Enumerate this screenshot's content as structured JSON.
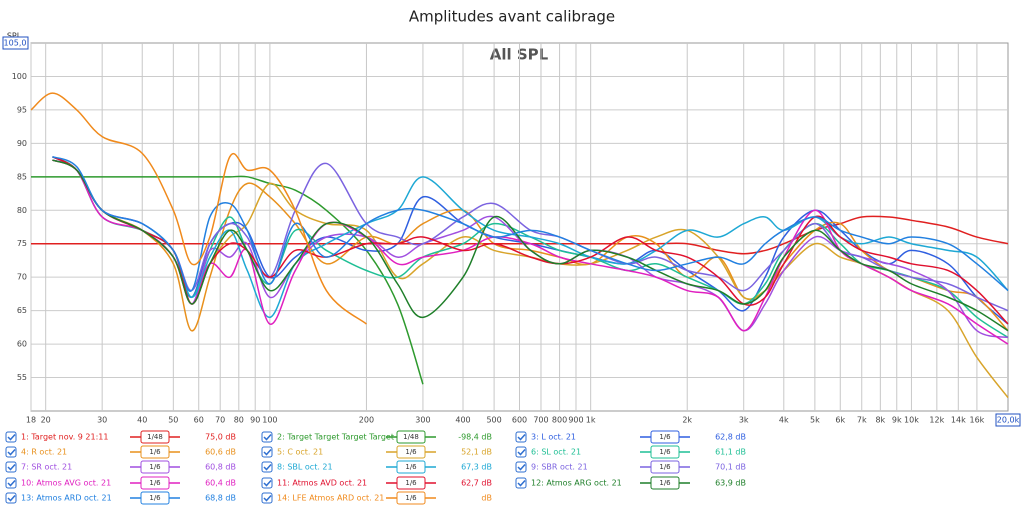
{
  "chart_data": {
    "type": "line",
    "title": "Amplitudes avant calibrage",
    "subtitle": "All SPL",
    "y_label": "SPL",
    "x_log": true,
    "grid": true,
    "xlim": [
      18,
      20000
    ],
    "ylim": [
      50,
      105
    ],
    "xticks": [
      18,
      20,
      30,
      40,
      50,
      60,
      70,
      80,
      90,
      100,
      200,
      300,
      400,
      500,
      600,
      700,
      800,
      900,
      {
        "value": 1000,
        "label": "1k"
      },
      {
        "value": 2000,
        "label": "2k"
      },
      {
        "value": 3000,
        "label": "3k"
      },
      {
        "value": 4000,
        "label": "4k"
      },
      {
        "value": 5000,
        "label": "5k"
      },
      {
        "value": 6000,
        "label": "6k"
      },
      {
        "value": 7000,
        "label": "7k"
      },
      {
        "value": 8000,
        "label": "8k"
      },
      {
        "value": 9000,
        "label": "9k"
      },
      {
        "value": 10000,
        "label": "10k"
      },
      {
        "value": 12000,
        "label": "12k"
      },
      {
        "value": 14000,
        "label": "14k"
      },
      {
        "value": 16000,
        "label": "16k"
      },
      {
        "value": 20000,
        "label": "20,0k"
      }
    ],
    "yticks": [
      55,
      60,
      65,
      70,
      75,
      80,
      85,
      90,
      95,
      100,
      {
        "value": 105,
        "label": "105,0"
      }
    ],
    "x": [
      18,
      21,
      25,
      30,
      40,
      50,
      57,
      65,
      75,
      85,
      100,
      120,
      150,
      200,
      250,
      300,
      400,
      500,
      650,
      800,
      1000,
      1300,
      1600,
      2000,
      2500,
      3000,
      3500,
      4000,
      5000,
      6000,
      7000,
      8500,
      10000,
      13000,
      16000,
      20000
    ],
    "series": [
      {
        "name": "1: Target nov. 9 21:11",
        "color": "#e02020",
        "smoothing": "1/48",
        "level": "75,0 dB",
        "values": [
          75,
          75,
          75,
          75,
          75,
          75,
          75,
          75,
          75,
          75,
          75,
          75,
          75,
          75,
          75,
          75,
          75,
          75,
          75,
          75,
          75,
          75,
          75,
          75,
          74,
          73.5,
          74,
          75,
          77,
          78,
          79,
          79,
          78.5,
          77.5,
          76,
          75
        ]
      },
      {
        "name": "2: Target Target Target Target 1",
        "color": "#2e9a2e",
        "smoothing": "1/48",
        "level": "-98,4 dB",
        "values": [
          85,
          85,
          85,
          85,
          85,
          85,
          85,
          85,
          85,
          85,
          84,
          83,
          80,
          74,
          66,
          54,
          null,
          null,
          null,
          null,
          null,
          null,
          null,
          null,
          null,
          null,
          null,
          null,
          null,
          null,
          null,
          null,
          null,
          null,
          null,
          null
        ]
      },
      {
        "name": "3: L oct. 21",
        "color": "#2f5fe0",
        "smoothing": "1/6",
        "level": "62,8 dB",
        "values": [
          null,
          88,
          86,
          80,
          77,
          73,
          67,
          75,
          78,
          77,
          70,
          73,
          76,
          74,
          75,
          82,
          78,
          76,
          75,
          74,
          73,
          72,
          74,
          71,
          68,
          65,
          70,
          76,
          80,
          77,
          74,
          72,
          74,
          72,
          67,
          63
        ]
      },
      {
        "name": "4: R oct. 21",
        "color": "#e8901c",
        "smoothing": "1/6",
        "level": "60,6 dB",
        "values": [
          null,
          87.5,
          86,
          80,
          77,
          72,
          62,
          70,
          80,
          84,
          82,
          78,
          72,
          76,
          75,
          78,
          80,
          75,
          74,
          73,
          72,
          76,
          75,
          70,
          73,
          67,
          68,
          72,
          77,
          78,
          74,
          71,
          70,
          68,
          67,
          62
        ]
      },
      {
        "name": "5: C oct. 21",
        "color": "#d8a42a",
        "smoothing": "1/6",
        "level": "52,1 dB",
        "values": [
          null,
          87.5,
          86,
          80,
          77,
          73,
          66,
          72,
          76,
          78,
          84,
          80,
          78,
          77,
          70,
          72,
          76,
          74,
          73,
          72,
          72,
          74,
          76,
          77,
          73,
          67,
          68,
          71,
          75,
          73,
          72,
          70,
          68,
          65,
          58,
          52
        ]
      },
      {
        "name": "6: SL oct. 21",
        "color": "#1fbf95",
        "smoothing": "1/6",
        "level": "61,1 dB",
        "values": [
          null,
          88,
          86,
          79,
          77,
          74,
          67,
          74,
          79,
          74,
          69,
          77,
          74,
          71,
          70,
          73,
          75,
          78,
          76,
          74,
          73,
          71,
          72,
          70,
          68,
          66,
          69,
          74,
          78,
          75,
          72,
          71,
          70,
          68,
          64,
          61
        ]
      },
      {
        "name": "7: SR oct. 21",
        "color": "#a04fe0",
        "smoothing": "1/6",
        "level": "60,8 dB",
        "values": [
          null,
          87.5,
          86,
          80,
          77,
          74,
          66,
          74,
          73,
          75,
          67,
          72,
          76,
          76,
          73,
          75,
          77,
          79,
          74,
          72,
          74,
          73,
          70,
          69,
          67,
          62,
          66,
          71,
          76,
          74,
          73,
          72,
          71,
          68,
          62,
          61
        ]
      },
      {
        "name": "8: SBL oct. 21",
        "color": "#1ea8d4",
        "smoothing": "1/6",
        "level": "67,3 dB",
        "values": [
          null,
          88,
          86,
          80,
          78,
          74,
          67,
          73,
          77,
          71,
          64,
          72,
          75,
          78,
          80,
          85,
          80,
          77,
          76,
          75,
          73,
          72,
          74,
          77,
          76,
          78,
          79,
          77,
          79,
          76,
          75,
          76,
          75,
          74,
          73,
          68
        ]
      },
      {
        "name": "9: SBR oct. 21",
        "color": "#7b63e0",
        "smoothing": "1/6",
        "level": "70,1 dB",
        "values": [
          null,
          88,
          86,
          80,
          78,
          74,
          68,
          75,
          78,
          76,
          70,
          80,
          87,
          78,
          76,
          75,
          79,
          81,
          77,
          76,
          74,
          72,
          73,
          71,
          70,
          68,
          71,
          74,
          78,
          74,
          73,
          71,
          70,
          69,
          67,
          65
        ]
      },
      {
        "name": "10: Atmos AVG oct. 21",
        "color": "#e020c0",
        "smoothing": "1/6",
        "level": "60,4 dB",
        "values": [
          null,
          87.5,
          86,
          79,
          77,
          73,
          66,
          72,
          70,
          74,
          63,
          71,
          78,
          76,
          72,
          73,
          74,
          76,
          75,
          73,
          72,
          71,
          70,
          68,
          67,
          62,
          67,
          73,
          80,
          74,
          72,
          70,
          68,
          66,
          63,
          60
        ]
      },
      {
        "name": "11: Atmos AVD oct. 21",
        "color": "#e0102e",
        "smoothing": "1/6",
        "level": "62,7 dB",
        "values": [
          null,
          88,
          86,
          80,
          77,
          74,
          66,
          72,
          75,
          74,
          70,
          74,
          73,
          75,
          75,
          76,
          74,
          75,
          73,
          72,
          73,
          76,
          74,
          73,
          70,
          66,
          67,
          72,
          79,
          76,
          74,
          73,
          72,
          71,
          68,
          63
        ]
      },
      {
        "name": "12: Atmos ARG oct. 21",
        "color": "#1f7f2a",
        "smoothing": "1/6",
        "level": "63,9 dB",
        "values": [
          null,
          87.5,
          86,
          80,
          77,
          73,
          66,
          72,
          77,
          74,
          68,
          72,
          78,
          76,
          69,
          64,
          70,
          79,
          74,
          72,
          74,
          73,
          71,
          69,
          68,
          66,
          68,
          73,
          77,
          74,
          72,
          71,
          69,
          67,
          65,
          62
        ]
      },
      {
        "name": "13: Atmos ARD oct. 21",
        "color": "#2280e0",
        "smoothing": "1/6",
        "level": "68,8 dB",
        "values": [
          null,
          88,
          86.5,
          80,
          78,
          74,
          68,
          79,
          81,
          77,
          69,
          78,
          73,
          78,
          80,
          80,
          78,
          76,
          77,
          76,
          74,
          72,
          71,
          72,
          73,
          72,
          75,
          77,
          79,
          77,
          76,
          75,
          76,
          75,
          72,
          68
        ]
      },
      {
        "name": "14: LFE Atmos ARD oct. 21",
        "color": "#f08a1c",
        "smoothing": "1/6",
        "level": "dB",
        "values": [
          95,
          97.5,
          95,
          91,
          88.5,
          80,
          72,
          76,
          88,
          86,
          86,
          80,
          68,
          63,
          null,
          null,
          null,
          null,
          null,
          null,
          null,
          null,
          null,
          null,
          null,
          null,
          null,
          null,
          null,
          null,
          null,
          null,
          null,
          null,
          null,
          null
        ]
      }
    ]
  }
}
